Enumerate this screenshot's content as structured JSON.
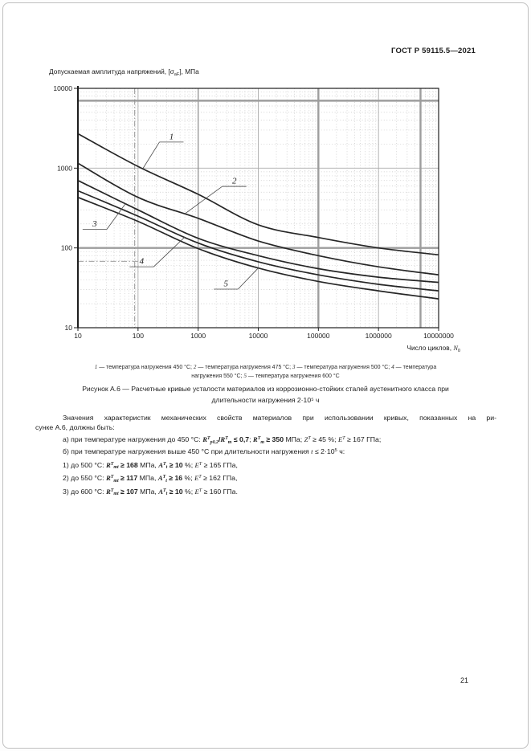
{
  "page": {
    "header": "ГОСТ Р 59115.5—2021",
    "number": "21"
  },
  "chart": {
    "title_segments": [
      {
        "t": "Допускаемая амплитуда напряжений, [σ",
        "s": ""
      },
      {
        "t": "aF",
        "s": "sub"
      },
      {
        "t": "], МПа",
        "s": ""
      }
    ],
    "xlabel_segments": [
      {
        "t": "Число циклов, ",
        "s": ""
      },
      {
        "t": "N",
        "s": "i"
      },
      {
        "t": "0",
        "s": "sub"
      }
    ]
  },
  "chart_data": {
    "type": "line",
    "log_x": true,
    "log_y": true,
    "title": "Допускаемая амплитуда напряжений, [σaF], МПа",
    "xlabel": "Число циклов, N0",
    "ylabel": "Допускаемая амплитуда напряжений, МПа",
    "xlim": [
      10,
      10000000
    ],
    "ylim": [
      10,
      10000
    ],
    "grid": "log minor dotted, decades solid",
    "x": [
      10,
      100,
      1000,
      10000,
      100000,
      1000000,
      10000000
    ],
    "x_ticklabels": [
      "10",
      "100",
      "1000",
      "10000",
      "100000",
      "1000000",
      "10000000"
    ],
    "y_ticks": [
      10,
      100,
      1000,
      10000
    ],
    "y_ticklabels": [
      "10",
      "100",
      "1000",
      "10000"
    ],
    "series": [
      {
        "name": "1 — температура нагружения 450 °С",
        "values": [
          2700,
          1050,
          470,
          195,
          135,
          100,
          82
        ],
        "label": {
          "text": "1",
          "pos": [
            360,
            2300
          ],
          "attach": [
            120,
            985
          ]
        }
      },
      {
        "name": "2 — температура нагружения 475 °С",
        "values": [
          1150,
          430,
          235,
          122,
          80,
          58,
          46
        ],
        "label": {
          "text": "2",
          "pos": [
            4000,
            640
          ],
          "attach": [
            600,
            268
          ]
        }
      },
      {
        "name": "3 — температура нагружения 500 °С",
        "values": [
          700,
          300,
          132,
          80,
          55,
          43,
          37
        ],
        "label": {
          "text": "3",
          "pos": [
            19,
            185
          ],
          "attach": [
            62,
            360
          ]
        }
      },
      {
        "name": "4 — температура нагружения 550 °С",
        "values": [
          520,
          250,
          115,
          67,
          46,
          35,
          29
        ],
        "label": {
          "text": "4",
          "pos": [
            115,
            63
          ],
          "attach": [
            600,
            137
          ]
        }
      },
      {
        "name": "5 — температура нагружения 600 °С",
        "values": [
          430,
          215,
          98,
          56,
          38,
          29,
          23
        ],
        "label": {
          "text": "5",
          "pos": [
            2900,
            33
          ],
          "attach": [
            10000,
            56
          ]
        }
      }
    ],
    "reference_lines": {
      "vertical_strong_n": [
        100000,
        5000000
      ],
      "vertical_medium_n": [
        1000
      ],
      "horizontal_strong_sigma": [
        7000,
        100
      ],
      "vertical_dashdot_n": [
        88
      ],
      "horizontal_dashdot_partial": [
        {
          "sigma": 68,
          "to_n": 100
        }
      ]
    },
    "curve_color": "#262626",
    "grid_color": "#ababab"
  },
  "legend": {
    "line1": [
      {
        "t": "1",
        "s": "i"
      },
      {
        "t": " — температура нагружения 450 °С; ",
        "s": ""
      },
      {
        "t": "2",
        "s": "i"
      },
      {
        "t": " — температура нагружения 475 °С; ",
        "s": ""
      },
      {
        "t": "3",
        "s": "i"
      },
      {
        "t": " — температура нагружения 500 °С; ",
        "s": ""
      },
      {
        "t": "4",
        "s": "i"
      },
      {
        "t": " — температура",
        "s": ""
      }
    ],
    "line2": [
      {
        "t": "нагружения 550 °С; ",
        "s": ""
      },
      {
        "t": "5",
        "s": "i"
      },
      {
        "t": " — температура нагружения 600 °С",
        "s": ""
      }
    ]
  },
  "caption": {
    "line1": "Рисунок А.6 — Расчетные кривые усталости материалов из коррозионно-стойких сталей аустенитного класса при",
    "line2": "длительности нагружения 2·10⁵ ч"
  },
  "body": {
    "para_line1": "Значения характеристик механических свойств материалов при использовании кривых, показанных на ри-",
    "para_line2": "сунке А.6, должны быть:",
    "item_a": [
      {
        "t": "а) при температуре нагружения до 450 °С: ",
        "s": ""
      },
      {
        "t": "R",
        "s": "b i"
      },
      {
        "t": "T",
        "s": "b i sup"
      },
      {
        "t": "p0,2",
        "s": "b i sub"
      },
      {
        "t": "/",
        "s": "b"
      },
      {
        "t": "R",
        "s": "b i"
      },
      {
        "t": "T",
        "s": "b i sup"
      },
      {
        "t": "m",
        "s": "b i sub"
      },
      {
        "t": " ≤ 0,7",
        "s": "b"
      },
      {
        "t": "; ",
        "s": ""
      },
      {
        "t": "R",
        "s": "b i"
      },
      {
        "t": "T",
        "s": "b i sup"
      },
      {
        "t": "m",
        "s": "b i sub"
      },
      {
        "t": " ≥ 350",
        "s": "b"
      },
      {
        "t": " МПа; ",
        "s": ""
      },
      {
        "t": "Z",
        "s": "i"
      },
      {
        "t": "T",
        "s": "i sup"
      },
      {
        "t": " ≥ 45 %; ",
        "s": ""
      },
      {
        "t": "E",
        "s": "i"
      },
      {
        "t": "T",
        "s": "i sup"
      },
      {
        "t": " ≥ 167 ГПа;",
        "s": ""
      }
    ],
    "item_b": [
      {
        "t": "б) при температуре нагружения выше 450 °С при длительности нагружения ",
        "s": ""
      },
      {
        "t": "t",
        "s": "i"
      },
      {
        "t": " ≤ 2·10",
        "s": ""
      },
      {
        "t": "5",
        "s": "sup"
      },
      {
        "t": " ч:",
        "s": ""
      }
    ],
    "sub_items": [
      [
        {
          "t": "1) до 500 °С: ",
          "s": ""
        },
        {
          "t": "R",
          "s": "b i"
        },
        {
          "t": "T",
          "s": "b i sup"
        },
        {
          "t": "mt",
          "s": "b i sub"
        },
        {
          "t": " ≥ 168",
          "s": "b"
        },
        {
          "t": " МПа, ",
          "s": ""
        },
        {
          "t": "A",
          "s": "b i"
        },
        {
          "t": "T",
          "s": "b i sup"
        },
        {
          "t": "t",
          "s": "b i sub"
        },
        {
          "t": " ≥ 10",
          "s": "b"
        },
        {
          "t": " %; ",
          "s": ""
        },
        {
          "t": "E",
          "s": "i"
        },
        {
          "t": "T",
          "s": "i sup"
        },
        {
          "t": " ≥ 165 ГПа,",
          "s": ""
        }
      ],
      [
        {
          "t": "2) до 550 °С: ",
          "s": ""
        },
        {
          "t": "R",
          "s": "b i"
        },
        {
          "t": "T",
          "s": "b i sup"
        },
        {
          "t": "mt",
          "s": "b i sub"
        },
        {
          "t": " ≥ 117",
          "s": "b"
        },
        {
          "t": " МПа, ",
          "s": ""
        },
        {
          "t": "A",
          "s": "b i"
        },
        {
          "t": "T",
          "s": "b i sup"
        },
        {
          "t": "t",
          "s": "b i sub"
        },
        {
          "t": " ≥ 16",
          "s": "b"
        },
        {
          "t": " %; ",
          "s": ""
        },
        {
          "t": "E",
          "s": "i"
        },
        {
          "t": "T",
          "s": "i sup"
        },
        {
          "t": " ≥ 162 ГПа,",
          "s": ""
        }
      ],
      [
        {
          "t": "3) до 600 °С: ",
          "s": ""
        },
        {
          "t": "R",
          "s": "b i"
        },
        {
          "t": "T",
          "s": "b i sup"
        },
        {
          "t": "mt",
          "s": "b i sub"
        },
        {
          "t": " ≥ 107",
          "s": "b"
        },
        {
          "t": " МПа, ",
          "s": ""
        },
        {
          "t": "A",
          "s": "b i"
        },
        {
          "t": "T",
          "s": "b i sup"
        },
        {
          "t": "t",
          "s": "b i sub"
        },
        {
          "t": " ≥ 10",
          "s": "b"
        },
        {
          "t": " %; ",
          "s": ""
        },
        {
          "t": "E",
          "s": "i"
        },
        {
          "t": "T",
          "s": "i sup"
        },
        {
          "t": " ≥ 160 ГПа.",
          "s": ""
        }
      ]
    ]
  }
}
